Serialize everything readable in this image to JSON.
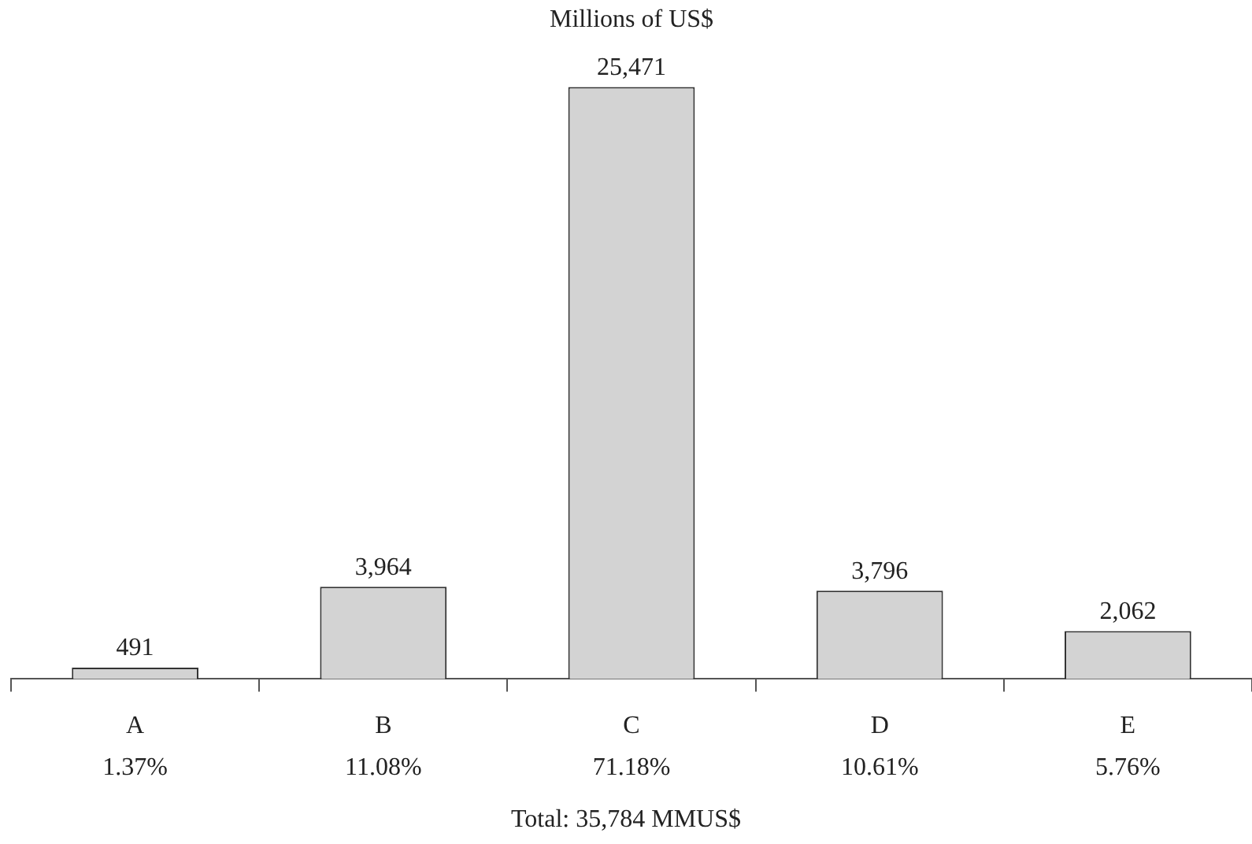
{
  "chart_data": {
    "type": "bar",
    "title": "Millions of US$",
    "categories": [
      "A\n1.37%",
      "B\n11.08%",
      "C\n71.18%",
      "D\n10.61%",
      "E\n5.76%"
    ],
    "values": [
      491,
      3964,
      25471,
      3796,
      2062
    ],
    "color": "#d3d3d3",
    "value_labels": [
      "491",
      "3,964",
      "25,471",
      "3,796",
      "2,062"
    ],
    "annotations": [
      "Total: 35,784 MMUS$"
    ]
  }
}
